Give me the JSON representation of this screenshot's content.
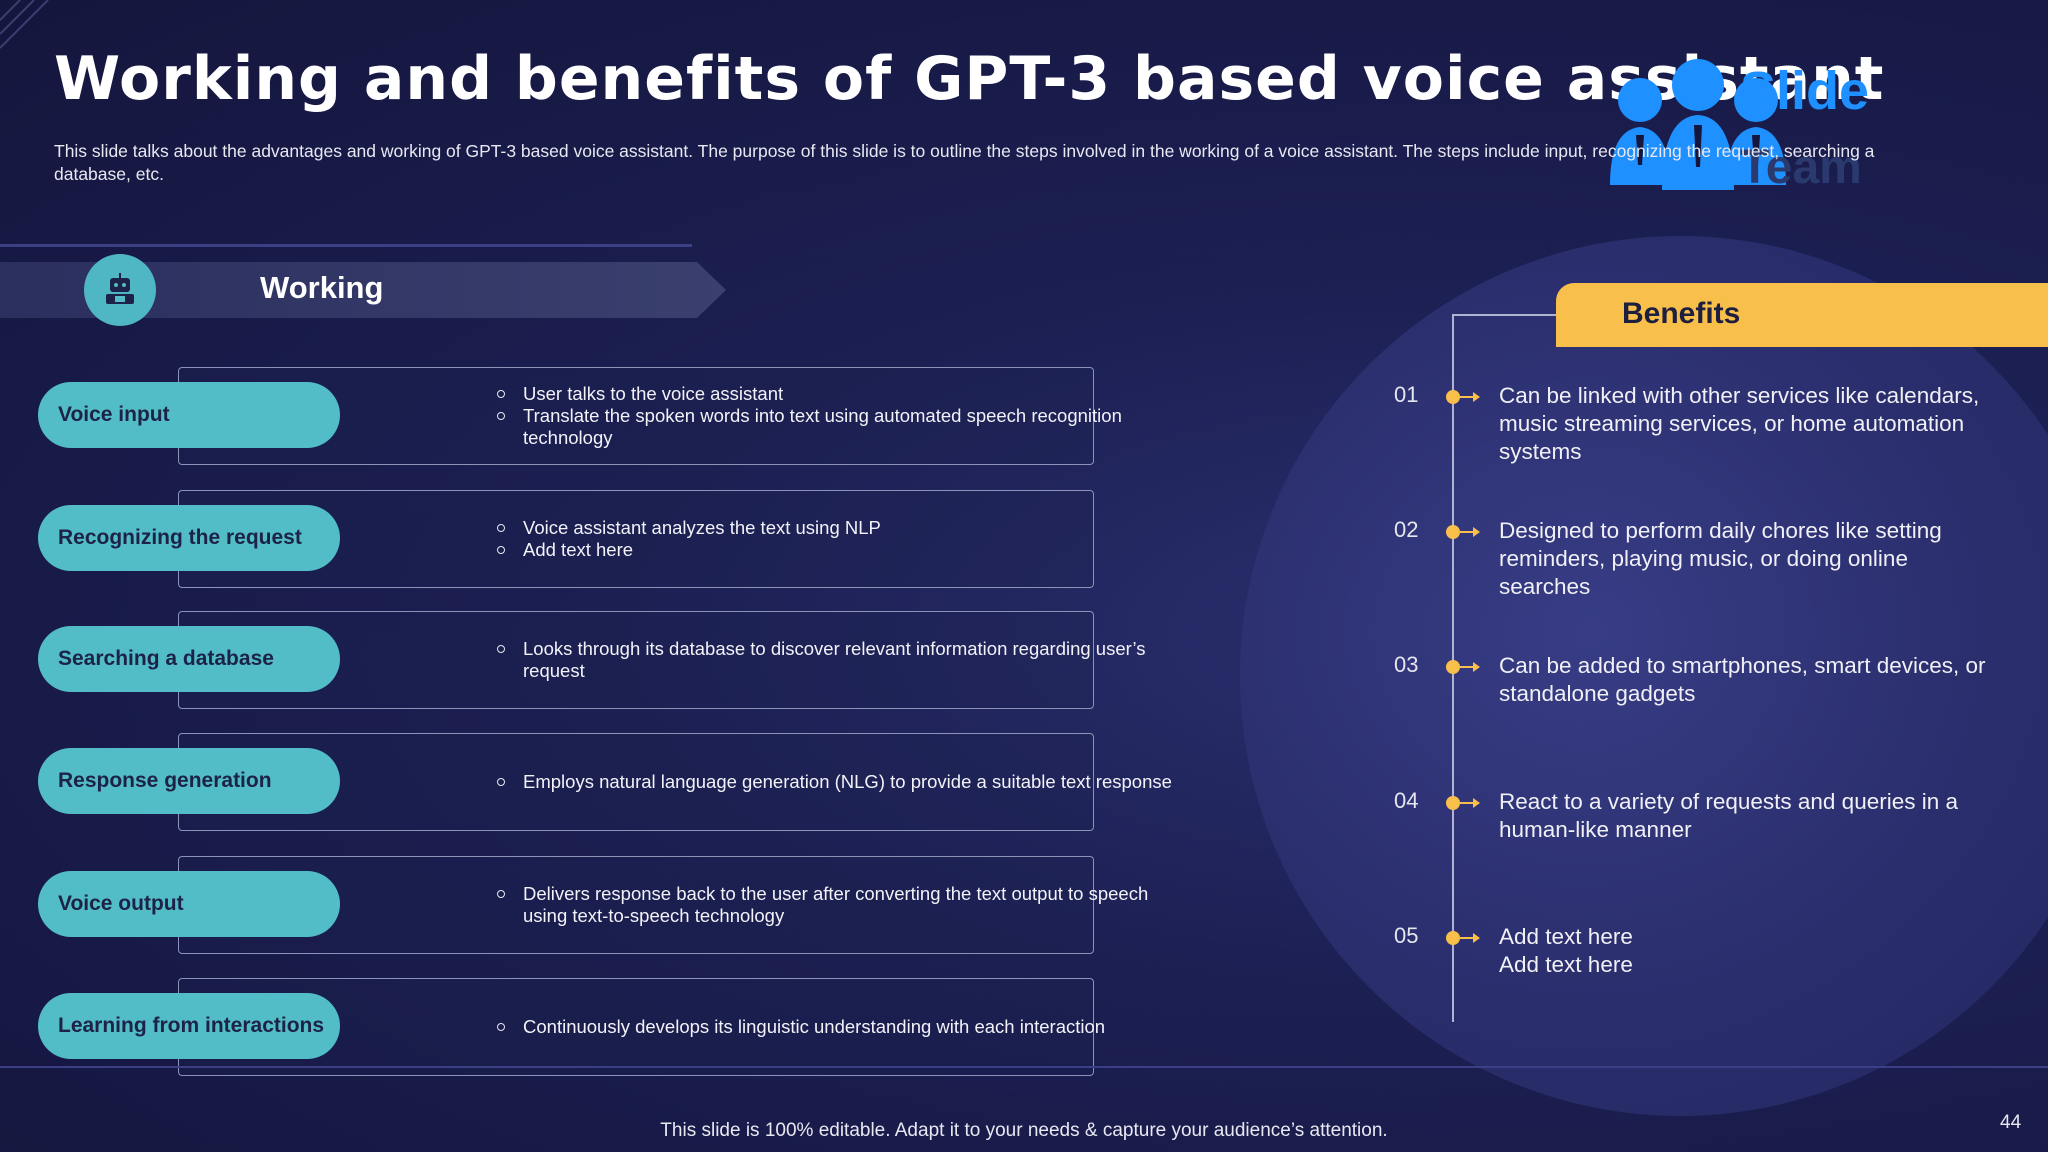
{
  "slide": {
    "title": "Working and benefits of GPT-3 based voice assistant",
    "subtitle": "This slide talks about the advantages and working of GPT-3 based voice assistant. The purpose of this slide is to outline the steps involved in the working of a voice assistant. The steps include input, recognizing the request, searching a database, etc.",
    "logo_text": "Slide",
    "logo_team": "Team"
  },
  "working": {
    "heading": "Working",
    "icon": "robot-icon",
    "steps": [
      {
        "label": "Voice input",
        "bullets": [
          "User talks to the voice assistant",
          "Translate the spoken words into text using automated speech recognition technology"
        ]
      },
      {
        "label": "Recognizing the request",
        "bullets": [
          "Voice assistant analyzes the text using NLP",
          "Add text here"
        ]
      },
      {
        "label": "Searching a database",
        "bullets": [
          "Looks through its database to discover relevant information regarding user’s request"
        ]
      },
      {
        "label": "Response  generation",
        "bullets": [
          "Employs natural language generation (NLG) to provide a suitable text response"
        ]
      },
      {
        "label": "Voice output",
        "bullets": [
          "Delivers response back to the user after converting the text  output to  speech using text-to-speech technology"
        ]
      },
      {
        "label": "Learning from interactions",
        "bullets": [
          "Continuously develops its linguistic understanding with each interaction"
        ]
      }
    ]
  },
  "benefits": {
    "heading": "Benefits",
    "items": [
      {
        "num": "01",
        "text": "Can be linked  with other services like calendars, music streaming services, or home automation systems"
      },
      {
        "num": "02",
        "text": "Designed to perform daily chores like setting reminders, playing  music, or doing online searches"
      },
      {
        "num": "03",
        "text": "Can be added to smartphones, smart devices, or standalone gadgets"
      },
      {
        "num": "04",
        "text": "React to a variety of requests and queries in a human-like manner"
      },
      {
        "num": "05",
        "text": "Add text here\nAdd text here"
      }
    ],
    "accent_color": "#f9bf4b"
  },
  "footer": {
    "text": "This slide is 100% editable. Adapt it to your needs & capture your audience’s attention.",
    "page": "44"
  },
  "colors": {
    "pill": "#52bdc6",
    "background": "#1c1f52"
  }
}
